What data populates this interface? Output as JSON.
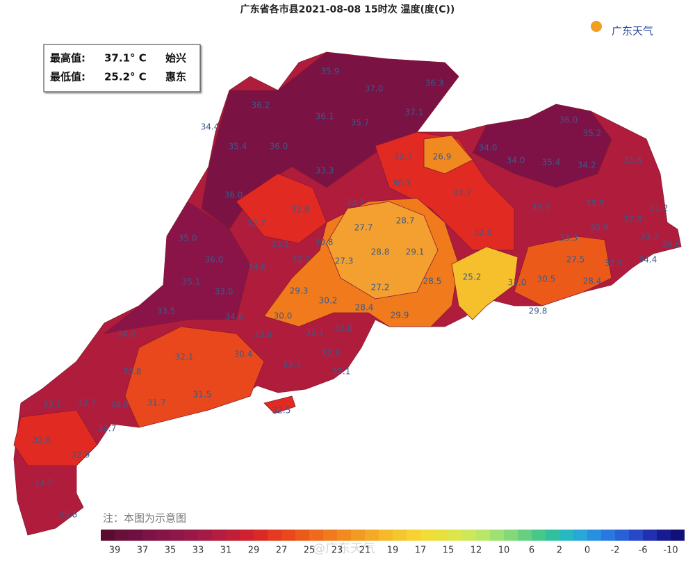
{
  "title": "广东省各市县2021-08-08 15时次 温度(度(C))",
  "logo": "广东天气",
  "stats": [
    {
      "label": "最高值:",
      "value": "37.1° C",
      "place": "始兴"
    },
    {
      "label": "最低值:",
      "value": "25.2° C",
      "place": "惠东"
    }
  ],
  "note": "注：本图为示意图",
  "watermark": "@广东天气",
  "stations": [
    "35.9",
    "37.0",
    "36.3",
    "36.2",
    "37.1",
    "36.1",
    "35.7",
    "34.4",
    "35.4",
    "36.0",
    "32.7",
    "26.9",
    "34.0",
    "36.0",
    "35.2",
    "32.6",
    "34.0",
    "35.4",
    "34.2",
    "33.3",
    "30.3",
    "32.7",
    "36.0",
    "32.8",
    "33.7",
    "28.7",
    "33.7",
    "33.3",
    "31.2",
    "32.7",
    "27.7",
    "32.0",
    "32.3",
    "30.9",
    "30.7",
    "29.6",
    "35.0",
    "33.1",
    "30.8",
    "28.8",
    "29.1",
    "33.3",
    "32.1",
    "34.4",
    "36.0",
    "34.6",
    "32.7",
    "27.3",
    "27.5",
    "35.1",
    "33.0",
    "29.3",
    "27.2",
    "28.5",
    "25.2",
    "31.0",
    "30.5",
    "28.4",
    "30.2",
    "28.4",
    "33.5",
    "34.6",
    "30.0",
    "29.9",
    "31.8",
    "29.8",
    "32.1",
    "34.0",
    "33.8",
    "32.1",
    "30.4",
    "32.5",
    "33.3",
    "33.1",
    "33.8",
    "32.7",
    "34.8",
    "31.7",
    "31.5",
    "32.5",
    "33.1",
    "30.7",
    "32.6",
    "32.9",
    "33.7",
    "35.8"
  ],
  "legend": {
    "ticks": [
      "39",
      "37",
      "35",
      "33",
      "31",
      "29",
      "27",
      "25",
      "23",
      "21",
      "19",
      "17",
      "15",
      "12",
      "10",
      "6",
      "2",
      "0",
      "-2",
      "-6",
      "-10"
    ],
    "colors": [
      "#5b0b2e",
      "#6a0f3a",
      "#701040",
      "#7d1245",
      "#861447",
      "#8f1648",
      "#9a1848",
      "#a61a46",
      "#b41c40",
      "#c11e38",
      "#cf2230",
      "#db2a26",
      "#e33a20",
      "#e8481c",
      "#ec5a1a",
      "#ef6a1a",
      "#f07a1c",
      "#f28a1e",
      "#f39a22",
      "#f4aa26",
      "#f5b92a",
      "#f6c62e",
      "#f6d232",
      "#f2dc38",
      "#e8e03e",
      "#dce64a",
      "#cce858",
      "#b8e666",
      "#a0e070",
      "#84d878",
      "#66d080",
      "#48c888",
      "#30c0a0",
      "#28b8c0",
      "#28a8d8",
      "#2890e0",
      "#2878e0",
      "#2860d8",
      "#2848c8",
      "#2030b0",
      "#181c90",
      "#10107a"
    ]
  }
}
